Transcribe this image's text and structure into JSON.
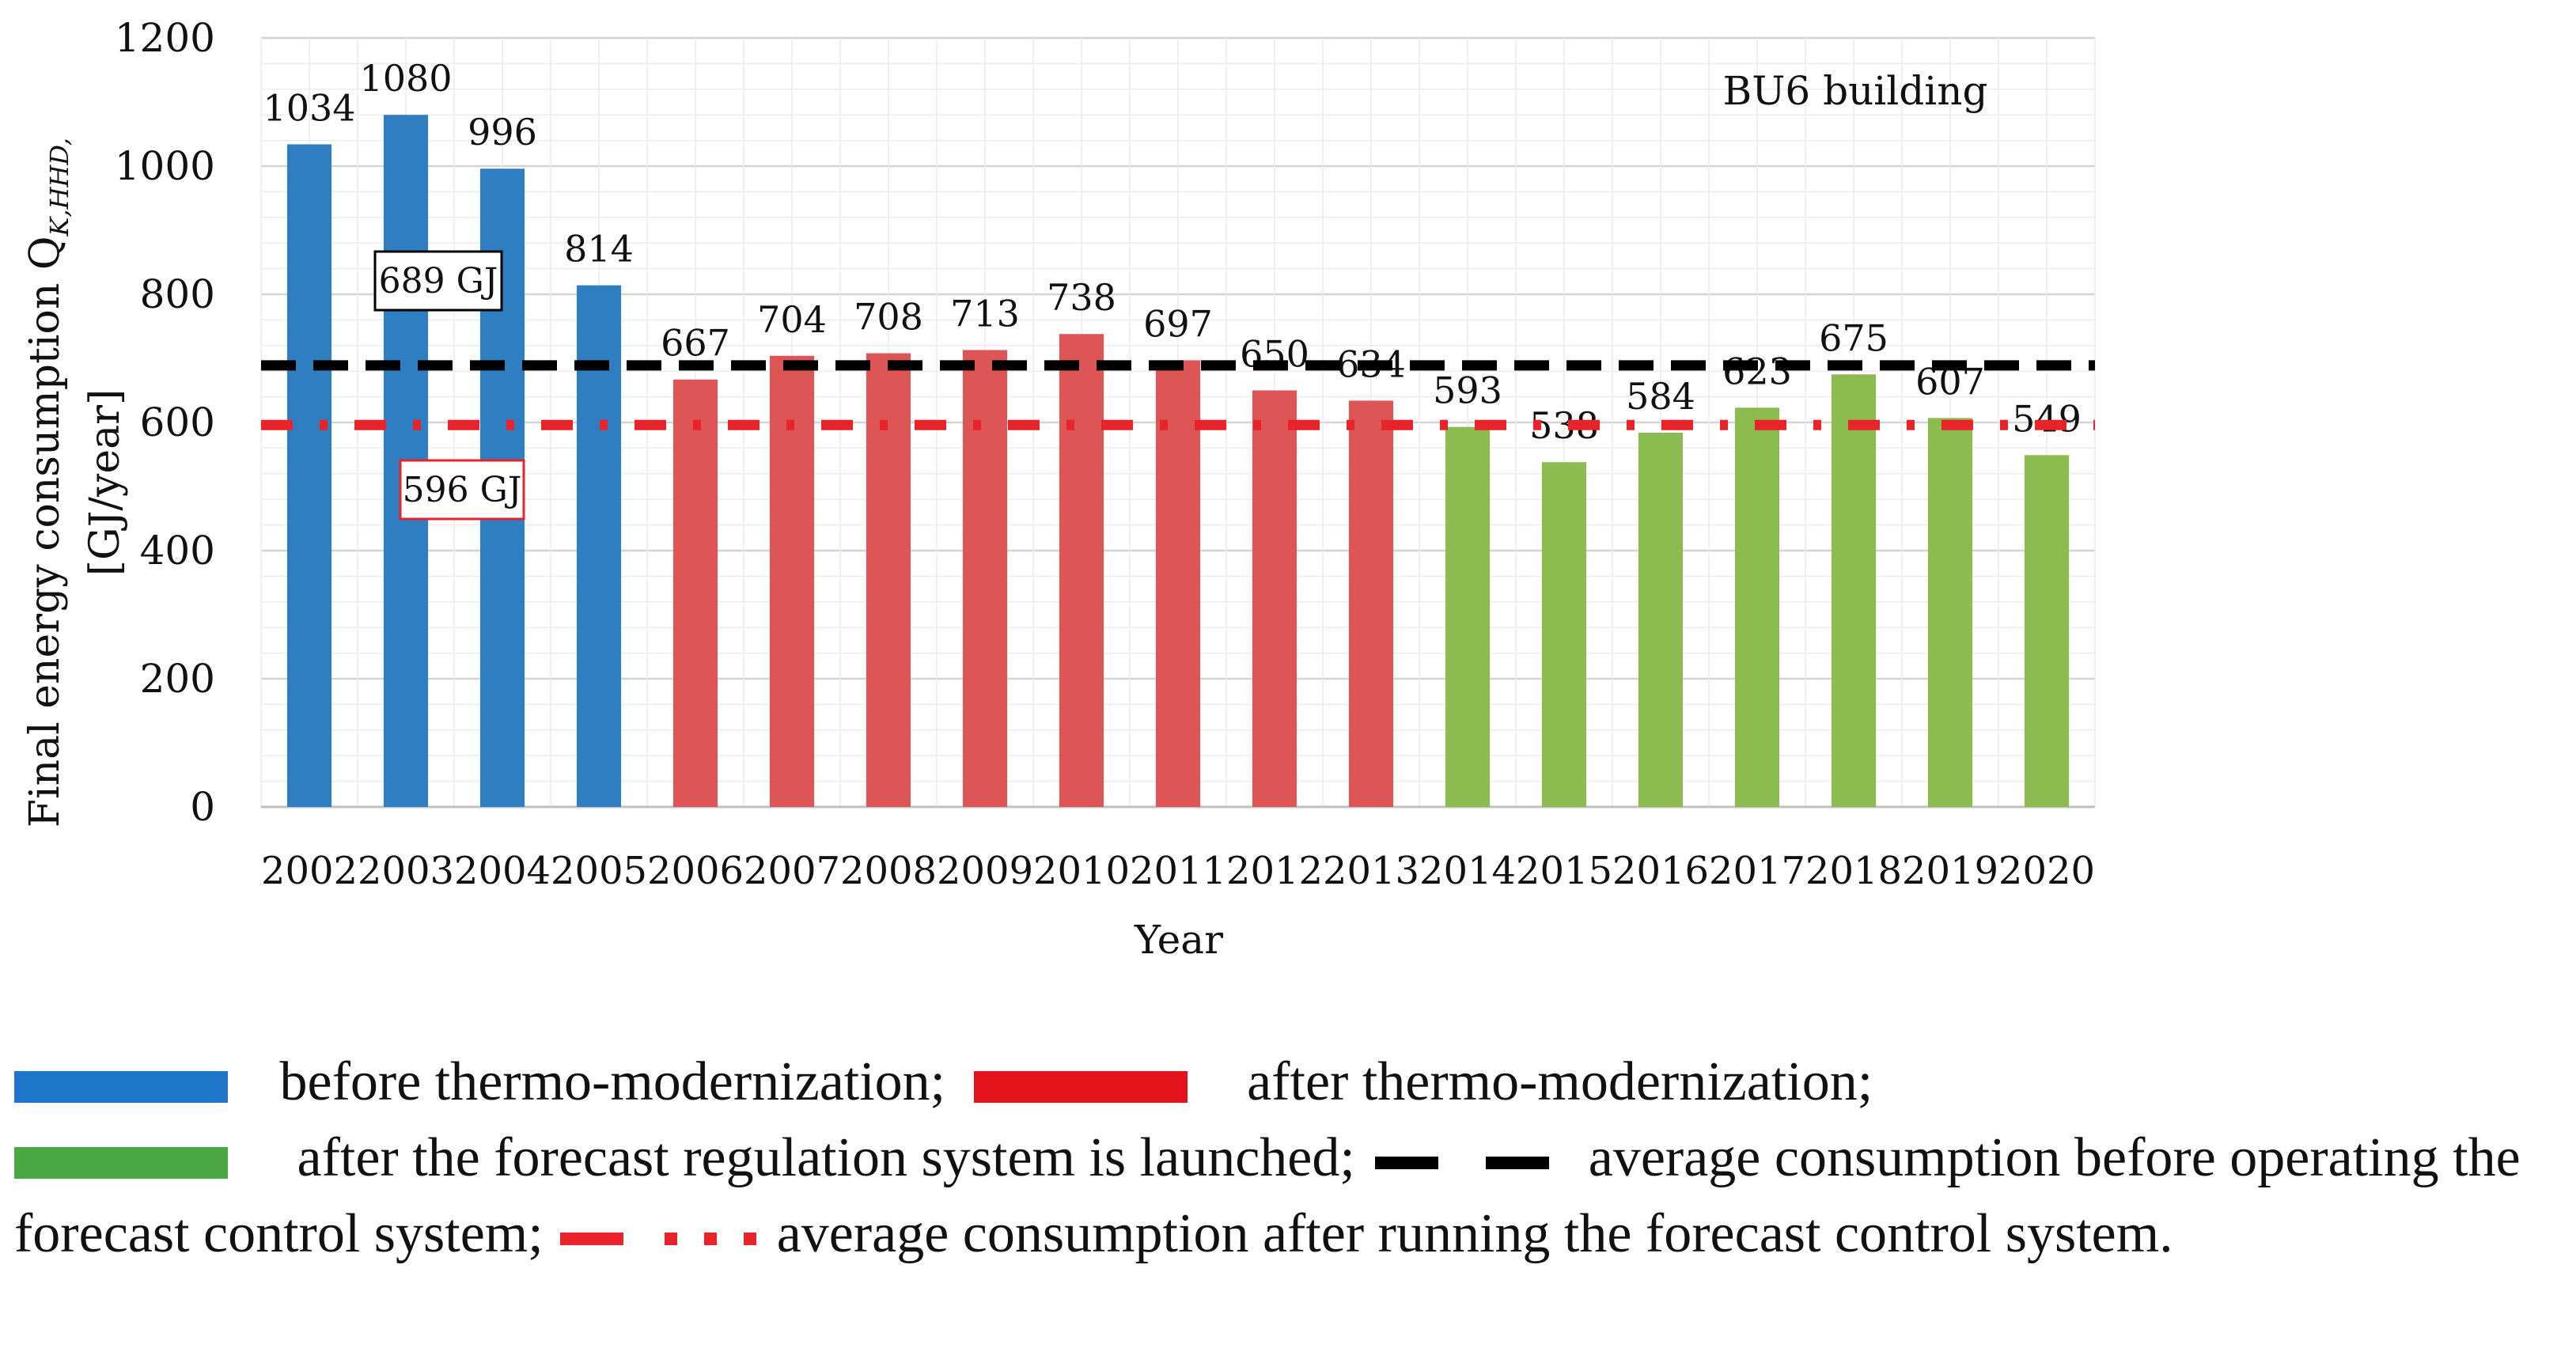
{
  "chart_data": {
    "type": "bar",
    "title": "BU6 building",
    "xlabel": "Year",
    "ylabel_line1": "Final energy consumption Q",
    "ylabel_subscript": "K,HHD,",
    "ylabel_line2": "[GJ/year]",
    "ylim": [
      0,
      1200
    ],
    "yticks": [
      0,
      200,
      400,
      600,
      800,
      1000,
      1200
    ],
    "categories": [
      "2002",
      "2003",
      "2004",
      "2005",
      "2006",
      "2007",
      "2008",
      "2009",
      "2010",
      "2011",
      "2012",
      "2013",
      "2014",
      "2015",
      "2016",
      "2017",
      "2018",
      "2019",
      "2020"
    ],
    "values": [
      1034,
      1080,
      996,
      814,
      667,
      704,
      708,
      713,
      738,
      697,
      650,
      634,
      593,
      538,
      584,
      623,
      675,
      607,
      549
    ],
    "groups": [
      "before",
      "before",
      "before",
      "before",
      "after",
      "after",
      "after",
      "after",
      "after",
      "after",
      "after",
      "after",
      "forecast",
      "forecast",
      "forecast",
      "forecast",
      "forecast",
      "forecast",
      "forecast"
    ],
    "group_colors": {
      "before": "#2e7ec1",
      "after": "#de5555",
      "forecast": "#8cbb50"
    },
    "reference_lines": [
      {
        "name": "average before",
        "value": 689,
        "label": "689 GJ",
        "color": "#000000",
        "style": "dashed"
      },
      {
        "name": "average after",
        "value": 596,
        "label": "596 GJ",
        "color": "#e8232a",
        "style": "dash-dot"
      }
    ]
  },
  "legend": {
    "before_label": "before thermo-modernization;",
    "before_color": "#1f75c9",
    "after_label": "after thermo-modernization;",
    "after_color": "#e4121b",
    "forecast_label": "after the forecast regulation system is launched;",
    "forecast_color": "#4aa844",
    "avg_before_label": "average consumption before operating the forecast control system;",
    "avg_after_label": "average consumption after running the forecast control system."
  }
}
